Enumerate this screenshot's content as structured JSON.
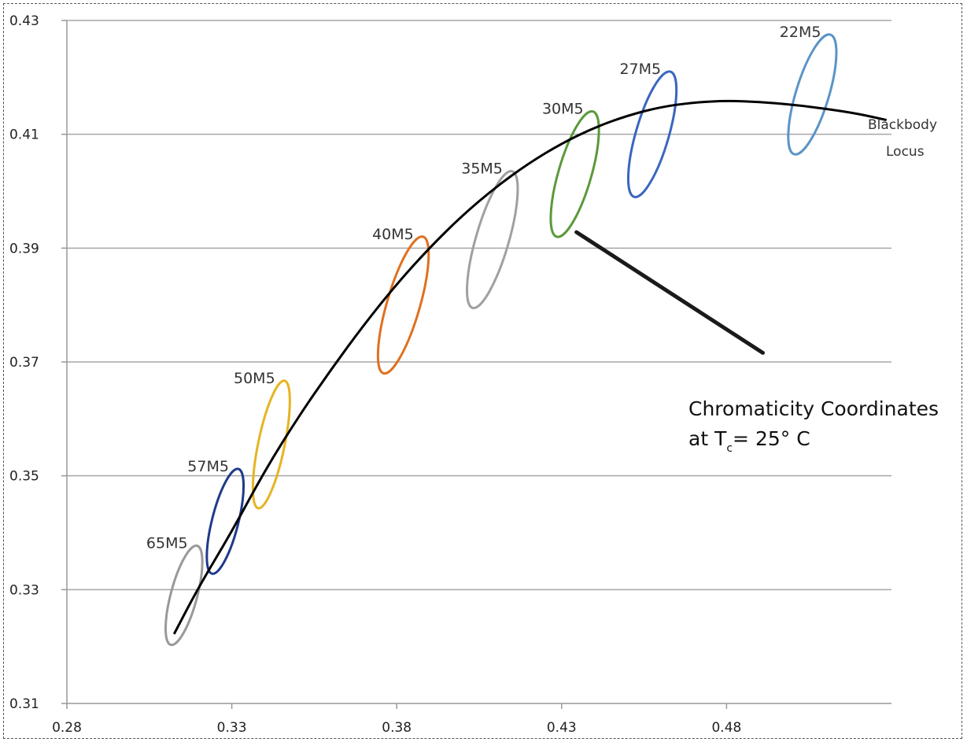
{
  "chart_data": {
    "type": "scatter",
    "xlim": [
      0.28,
      0.53
    ],
    "ylim": [
      0.31,
      0.43
    ],
    "x_ticks": [
      0.28,
      0.33,
      0.38,
      0.43,
      0.48
    ],
    "y_ticks": [
      0.31,
      0.33,
      0.35,
      0.37,
      0.39,
      0.41,
      0.43
    ],
    "x_tick_labels": [
      "0.28",
      "0.33",
      "0.38",
      "0.43",
      "0.48"
    ],
    "y_tick_labels": [
      "0.31",
      "0.33",
      "0.35",
      "0.37",
      "0.39",
      "0.41",
      "0.43"
    ],
    "grid": "horizontal",
    "locus": {
      "label_line1": "Blackbody",
      "label_line2": "Locus",
      "color": "#000000",
      "points": [
        [
          0.3125,
          0.3222
        ],
        [
          0.32,
          0.3305
        ],
        [
          0.33,
          0.3402
        ],
        [
          0.34,
          0.3509
        ],
        [
          0.35,
          0.3602
        ],
        [
          0.36,
          0.3686
        ],
        [
          0.37,
          0.3765
        ],
        [
          0.38,
          0.3837
        ],
        [
          0.39,
          0.3901
        ],
        [
          0.4,
          0.3958
        ],
        [
          0.41,
          0.4007
        ],
        [
          0.42,
          0.4049
        ],
        [
          0.43,
          0.4084
        ],
        [
          0.44,
          0.4112
        ],
        [
          0.45,
          0.4133
        ],
        [
          0.46,
          0.4148
        ],
        [
          0.47,
          0.4156
        ],
        [
          0.48,
          0.4159
        ],
        [
          0.49,
          0.4157
        ],
        [
          0.5,
          0.4152
        ],
        [
          0.51,
          0.4145
        ],
        [
          0.52,
          0.4136
        ],
        [
          0.5285,
          0.4125
        ]
      ]
    },
    "ellipses": [
      {
        "label": "65M5",
        "cx": 0.3155,
        "cy": 0.329,
        "tilt_dx": 0.004,
        "tilt_dy": 0.0087,
        "half_width": 0.004,
        "color": "#999999"
      },
      {
        "label": "57M5",
        "cx": 0.328,
        "cy": 0.342,
        "tilt_dx": 0.004,
        "tilt_dy": 0.0092,
        "half_width": 0.004,
        "color": "#1f3a8a"
      },
      {
        "label": "50M5",
        "cx": 0.342,
        "cy": 0.3555,
        "tilt_dx": 0.004,
        "tilt_dy": 0.0112,
        "half_width": 0.004,
        "color": "#e6b422"
      },
      {
        "label": "40M5",
        "cx": 0.382,
        "cy": 0.38,
        "tilt_dx": 0.006,
        "tilt_dy": 0.012,
        "half_width": 0.005,
        "color": "#e07020"
      },
      {
        "label": "35M5",
        "cx": 0.409,
        "cy": 0.3915,
        "tilt_dx": 0.006,
        "tilt_dy": 0.012,
        "half_width": 0.005,
        "color": "#a0a0a0"
      },
      {
        "label": "30M5",
        "cx": 0.434,
        "cy": 0.403,
        "tilt_dx": 0.0055,
        "tilt_dy": 0.011,
        "half_width": 0.005,
        "color": "#5a9a3a"
      },
      {
        "label": "27M5",
        "cx": 0.4575,
        "cy": 0.41,
        "tilt_dx": 0.0055,
        "tilt_dy": 0.011,
        "half_width": 0.005,
        "color": "#3a66c0"
      },
      {
        "label": "22M5",
        "cx": 0.506,
        "cy": 0.417,
        "tilt_dx": 0.0055,
        "tilt_dy": 0.0105,
        "half_width": 0.005,
        "color": "#5a94c8"
      }
    ],
    "callout": {
      "line1": "Chromaticity Coordinates",
      "line2_prefix": "at T",
      "line2_sub": "c",
      "line2_suffix": "= 25° C",
      "pointer_from": [
        0.4345,
        0.3928
      ],
      "pointer_to": [
        0.491,
        0.3716
      ]
    }
  }
}
